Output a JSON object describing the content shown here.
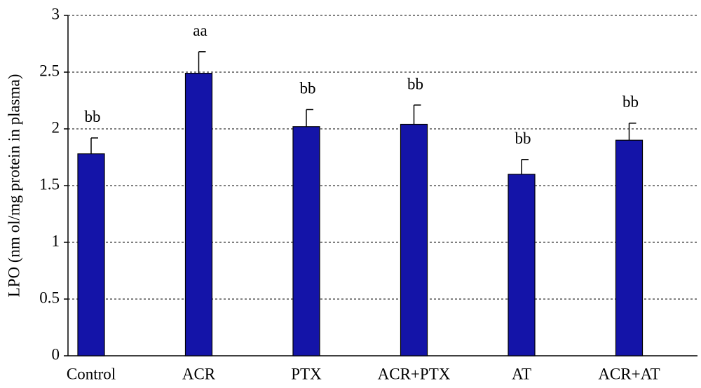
{
  "chart_data": {
    "type": "bar",
    "y_label": "LPO (nm ol/mg protein in plasma)",
    "categories": [
      "Control",
      "ACR",
      "PTX",
      "ACR+PTX",
      "AT",
      "ACR+AT"
    ],
    "values": [
      1.78,
      2.49,
      2.02,
      2.04,
      1.6,
      1.9
    ],
    "errors": [
      0.14,
      0.19,
      0.15,
      0.17,
      0.13,
      0.15
    ],
    "annotations": [
      "bb",
      "aa",
      "bb",
      "bb",
      "bb",
      "bb"
    ],
    "color": "#1414a8",
    "ylim": [
      0,
      3
    ],
    "yticks": [
      0,
      0.5,
      1,
      1.5,
      2,
      2.5,
      3
    ],
    "grid": true
  }
}
